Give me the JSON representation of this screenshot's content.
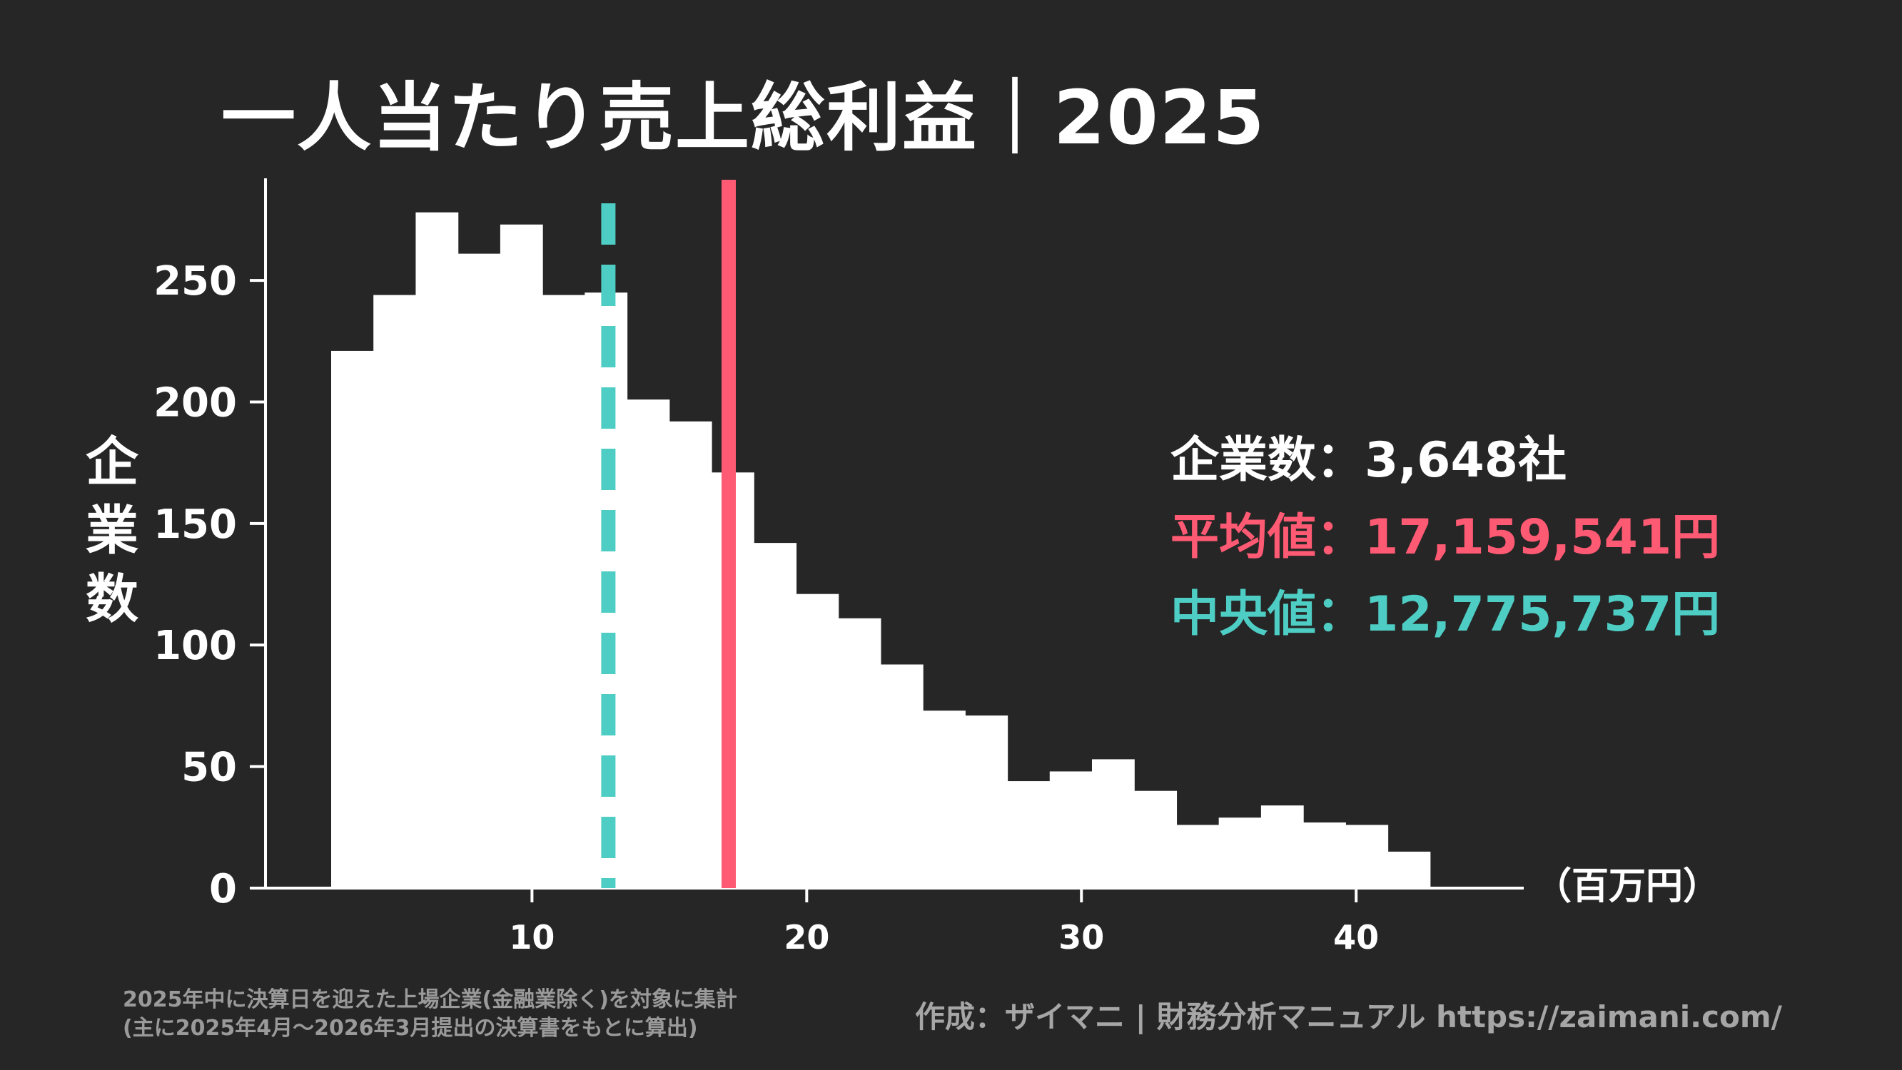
{
  "title": "一人当たり売上総利益｜2025",
  "stats": {
    "count": "企業数：3,648社",
    "mean": "平均値：17,159,541円",
    "median": "中央値：12,775,737円"
  },
  "footnote": {
    "line1": "2025年中に決算日を迎えた上場企業(金融業除く)を対象に集計",
    "line2": "(主に2025年4月～2026年3月提出の決算書をもとに算出)"
  },
  "credit": "作成：ザイマニ | 財務分析マニュアル https://zaimani.com/",
  "colors": {
    "background": "#262626",
    "bars": "#ffffff",
    "mean_line": "#ff5a73",
    "median_line": "#4ecdc4"
  },
  "chart_data": {
    "type": "bar",
    "histogram": true,
    "bin_width": 1.5385,
    "x_start": 2.69,
    "values": [
      221,
      244,
      278,
      261,
      273,
      244,
      245,
      201,
      192,
      171,
      142,
      121,
      111,
      92,
      73,
      71,
      44,
      48,
      53,
      40,
      26,
      29,
      34,
      27,
      26,
      15
    ],
    "xlabel": "（百万円）",
    "ylabel": "企業数",
    "xlim": [
      0.3,
      46.1
    ],
    "ylim": [
      0,
      292
    ],
    "xticks": [
      10,
      20,
      30,
      40
    ],
    "yticks": [
      0,
      50,
      100,
      150,
      200,
      250
    ],
    "mean": 17.16,
    "median": 12.78,
    "grid": false
  }
}
